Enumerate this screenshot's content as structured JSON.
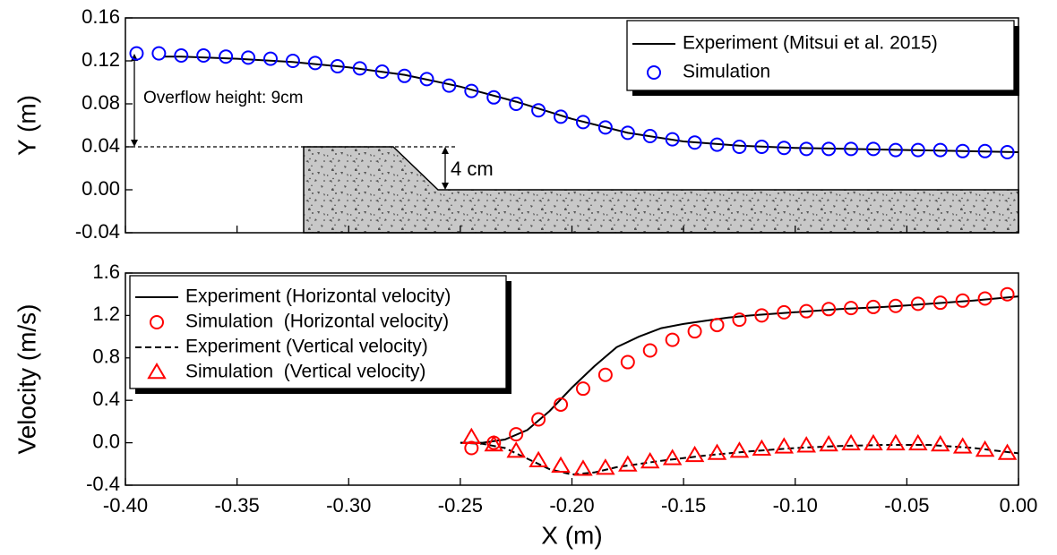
{
  "chart_data": [
    {
      "type": "line",
      "ylabel": "Y (m)",
      "xlim": [
        -0.4,
        0
      ],
      "ylim": [
        -0.04,
        0.16
      ],
      "xticks": [
        -0.4,
        -0.35,
        -0.3,
        -0.25,
        -0.2,
        -0.15,
        -0.1,
        -0.05,
        0
      ],
      "yticks": [
        -0.04,
        {
          "value": 0,
          "label": "0.00"
        },
        0.04,
        0.08,
        0.12,
        0.16
      ],
      "legend": "upper right",
      "annotations": [
        "Overflow height: 9cm",
        "4 cm"
      ],
      "series": [
        {
          "name": "Experiment (Mitsui et al. 2015)",
          "style": "line",
          "color": "#000000",
          "x": [
            -0.383,
            -0.375,
            -0.35,
            -0.325,
            -0.3,
            -0.275,
            -0.25,
            -0.225,
            -0.2,
            -0.175,
            -0.15,
            -0.125,
            -0.1,
            -0.075,
            -0.05,
            -0.025,
            0
          ],
          "values": [
            0.124,
            0.124,
            0.122,
            0.119,
            0.114,
            0.107,
            0.096,
            0.082,
            0.066,
            0.053,
            0.045,
            0.041,
            0.039,
            0.038,
            0.037,
            0.036,
            0.035
          ]
        },
        {
          "name": "Simulation",
          "style": "circle",
          "color": "#0000ff",
          "x": [
            -0.395,
            -0.385,
            -0.375,
            -0.365,
            -0.355,
            -0.345,
            -0.335,
            -0.325,
            -0.315,
            -0.305,
            -0.295,
            -0.285,
            -0.275,
            -0.265,
            -0.255,
            -0.245,
            -0.235,
            -0.225,
            -0.215,
            -0.205,
            -0.195,
            -0.185,
            -0.175,
            -0.165,
            -0.155,
            -0.145,
            -0.135,
            -0.125,
            -0.115,
            -0.105,
            -0.095,
            -0.085,
            -0.075,
            -0.065,
            -0.055,
            -0.045,
            -0.035,
            -0.025,
            -0.015,
            -0.005
          ],
          "values": [
            0.127,
            0.127,
            0.125,
            0.125,
            0.124,
            0.123,
            0.122,
            0.12,
            0.118,
            0.115,
            0.113,
            0.11,
            0.106,
            0.103,
            0.097,
            0.092,
            0.086,
            0.08,
            0.074,
            0.068,
            0.063,
            0.058,
            0.053,
            0.05,
            0.047,
            0.044,
            0.042,
            0.04,
            0.04,
            0.039,
            0.038,
            0.038,
            0.038,
            0.038,
            0.037,
            0.037,
            0.037,
            0.036,
            0.036,
            0.035
          ]
        }
      ]
    },
    {
      "type": "line",
      "xlabel": "X (m)",
      "ylabel": "Velocity (m/s)",
      "xlim": [
        -0.4,
        0
      ],
      "ylim": [
        -0.4,
        1.6
      ],
      "xticks": [
        {
          "value": -0.4,
          "label": "-0.40"
        },
        -0.35,
        {
          "value": -0.3,
          "label": "-0.30"
        },
        -0.25,
        {
          "value": -0.2,
          "label": "-0.20"
        },
        -0.15,
        {
          "value": -0.1,
          "label": "-0.10"
        },
        -0.05,
        {
          "value": 0,
          "label": "0.00"
        }
      ],
      "yticks": [
        -0.4,
        {
          "value": 0,
          "label": "0.0"
        },
        0.4,
        0.8,
        1.2,
        1.6
      ],
      "legend": "upper left",
      "series": [
        {
          "name": "Experiment (Horizontal velocity)",
          "style": "line",
          "color": "#000000",
          "x": [
            -0.25,
            -0.24,
            -0.23,
            -0.22,
            -0.21,
            -0.2,
            -0.19,
            -0.18,
            -0.17,
            -0.16,
            -0.15,
            -0.14,
            -0.13,
            -0.12,
            -0.1,
            -0.08,
            -0.06,
            -0.04,
            -0.02,
            0
          ],
          "values": [
            0,
            0,
            0.03,
            0.12,
            0.3,
            0.52,
            0.72,
            0.9,
            1,
            1.08,
            1.12,
            1.15,
            1.18,
            1.2,
            1.23,
            1.26,
            1.28,
            1.31,
            1.34,
            1.38
          ]
        },
        {
          "name": "Simulation  (Horizontal velocity)",
          "style": "circle",
          "color": "#ff0000",
          "x": [
            -0.245,
            -0.235,
            -0.225,
            -0.215,
            -0.205,
            -0.195,
            -0.185,
            -0.175,
            -0.165,
            -0.155,
            -0.145,
            -0.135,
            -0.125,
            -0.115,
            -0.105,
            -0.095,
            -0.085,
            -0.075,
            -0.065,
            -0.055,
            -0.045,
            -0.035,
            -0.025,
            -0.015,
            -0.005
          ],
          "values": [
            -0.05,
            0,
            0.08,
            0.22,
            0.36,
            0.51,
            0.64,
            0.76,
            0.87,
            0.97,
            1.05,
            1.11,
            1.16,
            1.2,
            1.23,
            1.24,
            1.26,
            1.27,
            1.28,
            1.29,
            1.31,
            1.32,
            1.34,
            1.36,
            1.4
          ]
        },
        {
          "name": "Experiment (Vertical velocity)",
          "style": "dashed",
          "color": "#000000",
          "x": [
            -0.25,
            -0.24,
            -0.23,
            -0.22,
            -0.21,
            -0.2,
            -0.19,
            -0.18,
            -0.16,
            -0.14,
            -0.12,
            -0.1,
            -0.08,
            -0.06,
            -0.04,
            -0.02,
            0
          ],
          "values": [
            0,
            -0.01,
            -0.05,
            -0.15,
            -0.25,
            -0.3,
            -0.28,
            -0.23,
            -0.17,
            -0.12,
            -0.08,
            -0.05,
            -0.03,
            -0.02,
            -0.02,
            -0.05,
            -0.1
          ]
        },
        {
          "name": "Simulation  (Vertical velocity)",
          "style": "triangle",
          "color": "#ff0000",
          "x": [
            -0.245,
            -0.235,
            -0.225,
            -0.215,
            -0.205,
            -0.195,
            -0.185,
            -0.175,
            -0.165,
            -0.155,
            -0.145,
            -0.135,
            -0.125,
            -0.115,
            -0.105,
            -0.095,
            -0.085,
            -0.075,
            -0.065,
            -0.055,
            -0.045,
            -0.035,
            -0.025,
            -0.015,
            -0.005
          ],
          "values": [
            0.05,
            -0.02,
            -0.08,
            -0.17,
            -0.22,
            -0.25,
            -0.24,
            -0.21,
            -0.18,
            -0.15,
            -0.12,
            -0.1,
            -0.08,
            -0.06,
            -0.04,
            -0.03,
            -0.02,
            -0.01,
            -0.01,
            -0.01,
            -0.01,
            -0.02,
            -0.04,
            -0.07,
            -0.1
          ]
        }
      ]
    }
  ]
}
